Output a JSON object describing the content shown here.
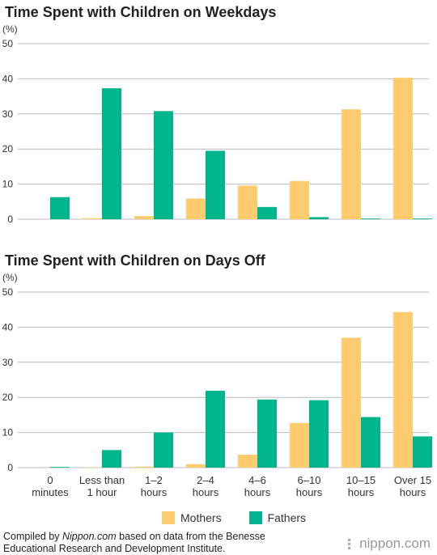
{
  "colors": {
    "mothers": "#fecb6f",
    "fathers": "#00b48e",
    "grid": "#bbbbbb"
  },
  "legend": {
    "mothers": "Mothers",
    "fathers": "Fathers"
  },
  "footer": {
    "prefix": "Compiled by ",
    "source_italic": "Nippon.com",
    "suffix": " based on data from the Benesse Educational Research and Development Institute."
  },
  "brand": {
    "name": "nippon",
    "dot": ".",
    "tld": "com",
    "icon": "nippon-logo-icon"
  },
  "categories": [
    [
      "0",
      "minutes"
    ],
    [
      "Less than",
      "1 hour"
    ],
    [
      "1–2",
      "hours"
    ],
    [
      "2–4",
      "hours"
    ],
    [
      "4–6",
      "hours"
    ],
    [
      "6–10",
      "hours"
    ],
    [
      "10–15",
      "hours"
    ],
    [
      "Over 15",
      "hours"
    ]
  ],
  "chart_data": [
    {
      "type": "bar",
      "title": "Time Spent with Children on Weekdays",
      "ylabel": "(%)",
      "ylim": [
        0,
        50
      ],
      "yticks": [
        0,
        10,
        20,
        30,
        40,
        50
      ],
      "grid": true,
      "categories": [
        "0 minutes",
        "Less than 1 hour",
        "1–2 hours",
        "2–4 hours",
        "4–6 hours",
        "6–10 hours",
        "10–15 hours",
        "Over 15 hours"
      ],
      "series": [
        {
          "name": "Mothers",
          "values": [
            0,
            0.3,
            0.9,
            5.9,
            9.6,
            10.9,
            31.3,
            40.3
          ]
        },
        {
          "name": "Fathers",
          "values": [
            6.3,
            37.3,
            30.8,
            19.5,
            3.5,
            0.6,
            0.2,
            0.2
          ]
        }
      ]
    },
    {
      "type": "bar",
      "title": "Time Spent with Children on Days Off",
      "ylabel": "(%)",
      "ylim": [
        0,
        50
      ],
      "yticks": [
        0,
        10,
        20,
        30,
        40,
        50
      ],
      "grid": true,
      "categories": [
        "0 minutes",
        "Less than 1 hour",
        "1–2 hours",
        "2–4 hours",
        "4–6 hours",
        "6–10 hours",
        "10–15 hours",
        "Over 15 hours"
      ],
      "series": [
        {
          "name": "Mothers",
          "values": [
            0,
            0.1,
            0.3,
            1.0,
            3.7,
            12.7,
            37.0,
            44.3
          ]
        },
        {
          "name": "Fathers",
          "values": [
            0.2,
            5.0,
            10.0,
            21.9,
            19.4,
            19.2,
            14.4,
            8.9
          ]
        }
      ]
    }
  ]
}
